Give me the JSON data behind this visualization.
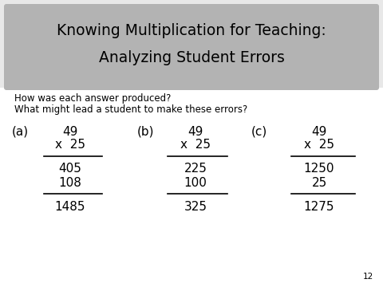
{
  "title_line1": "Knowing Multiplication for Teaching:",
  "title_line2": "Analyzing Student Errors",
  "title_bg_color": "#b3b3b3",
  "title_fontsize": 13.5,
  "bg_color": "#ffffff",
  "outer_bg_color": "#e8e8e8",
  "question1": "How was each answer produced?",
  "question2": "What might lead a student to make these errors?",
  "question_fontsize": 8.5,
  "label_fontsize": 11,
  "math_fontsize": 11,
  "page_number": "12",
  "problems": [
    {
      "label": "(a)",
      "multiplicand": "49",
      "multiplier": "x  25",
      "partial1": "405",
      "partial2": "108",
      "result": "1485"
    },
    {
      "label": "(b)",
      "multiplicand": "49",
      "multiplier": "x  25",
      "partial1": "225",
      "partial2": "100",
      "result": "325"
    },
    {
      "label": "(c)",
      "multiplicand": "49",
      "multiplier": "x  25",
      "partial1": "1250",
      "partial2": "25",
      "result": "1275"
    }
  ]
}
